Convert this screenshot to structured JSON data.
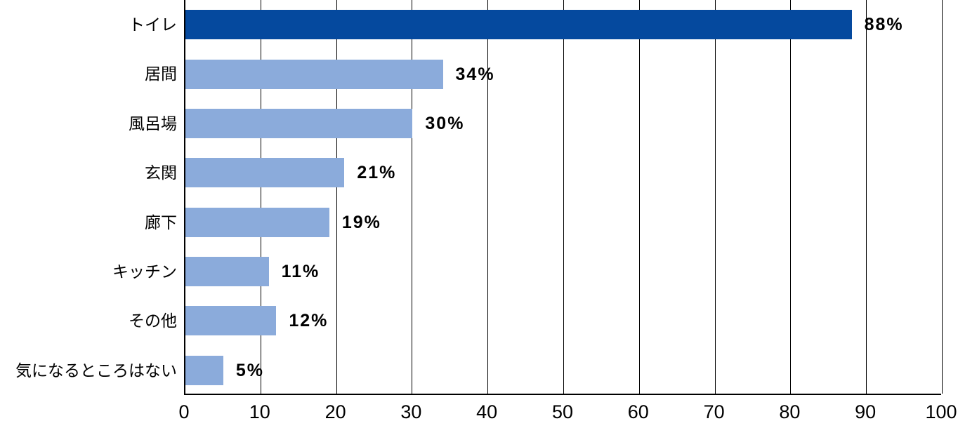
{
  "chart_data": {
    "type": "bar",
    "orientation": "horizontal",
    "title": "",
    "xlabel": "",
    "ylabel": "",
    "categories": [
      "トイレ",
      "居間",
      "風呂場",
      "玄関",
      "廊下",
      "キッチン",
      "その他",
      "気になるところはない"
    ],
    "values": [
      88,
      34,
      30,
      21,
      19,
      11,
      12,
      5
    ],
    "value_labels": [
      "88%",
      "34%",
      "30%",
      "21%",
      "19%",
      "11%",
      "12%",
      "5%"
    ],
    "value_suffix": "%",
    "xlim": [
      0,
      100
    ],
    "x_ticks": [
      0,
      10,
      20,
      30,
      40,
      50,
      60,
      70,
      80,
      90,
      100
    ],
    "grid": true,
    "legend": "none",
    "highlight_index": 0,
    "colors": {
      "highlight_bar": "#05499E",
      "bar": "#8BABDB",
      "gridline": "#000000",
      "axis": "#000000",
      "text": "#000000",
      "value_label": "#000000",
      "background": "#FFFFFF"
    }
  }
}
